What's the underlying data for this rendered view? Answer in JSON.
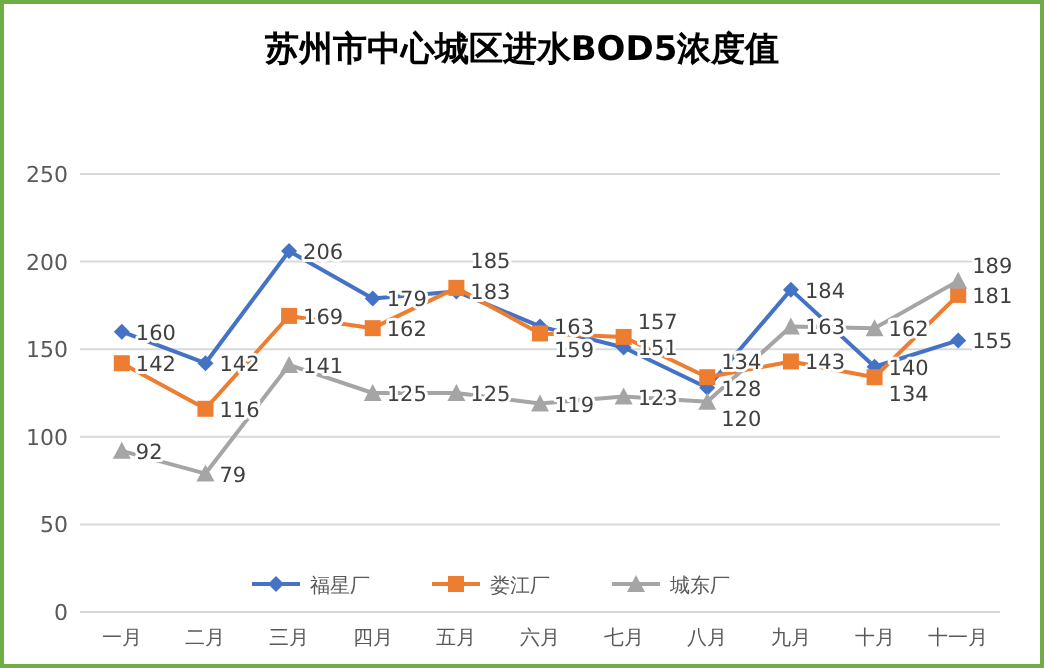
{
  "chart_data": {
    "type": "line",
    "title": "苏州市中心城区进水BOD5浓度值",
    "categories": [
      "一月",
      "二月",
      "三月",
      "四月",
      "五月",
      "六月",
      "七月",
      "八月",
      "九月",
      "十月",
      "十一月"
    ],
    "series": [
      {
        "name": "福星厂",
        "color": "#4472c4",
        "marker": "diamond",
        "values": [
          160,
          142,
          206,
          179,
          183,
          163,
          151,
          128,
          184,
          140,
          155
        ]
      },
      {
        "name": "娄江厂",
        "color": "#ed7d31",
        "marker": "square",
        "values": [
          142,
          116,
          169,
          162,
          185,
          159,
          157,
          134,
          143,
          134,
          181
        ]
      },
      {
        "name": "城东厂",
        "color": "#a5a5a5",
        "marker": "triangle",
        "values": [
          92,
          79,
          141,
          125,
          125,
          119,
          123,
          120,
          163,
          162,
          189
        ]
      }
    ],
    "ylim": [
      0,
      250
    ],
    "yticks": [
      0,
      50,
      100,
      150,
      200,
      250
    ],
    "grid": "y",
    "legend": "bottom",
    "data_labels": true
  }
}
